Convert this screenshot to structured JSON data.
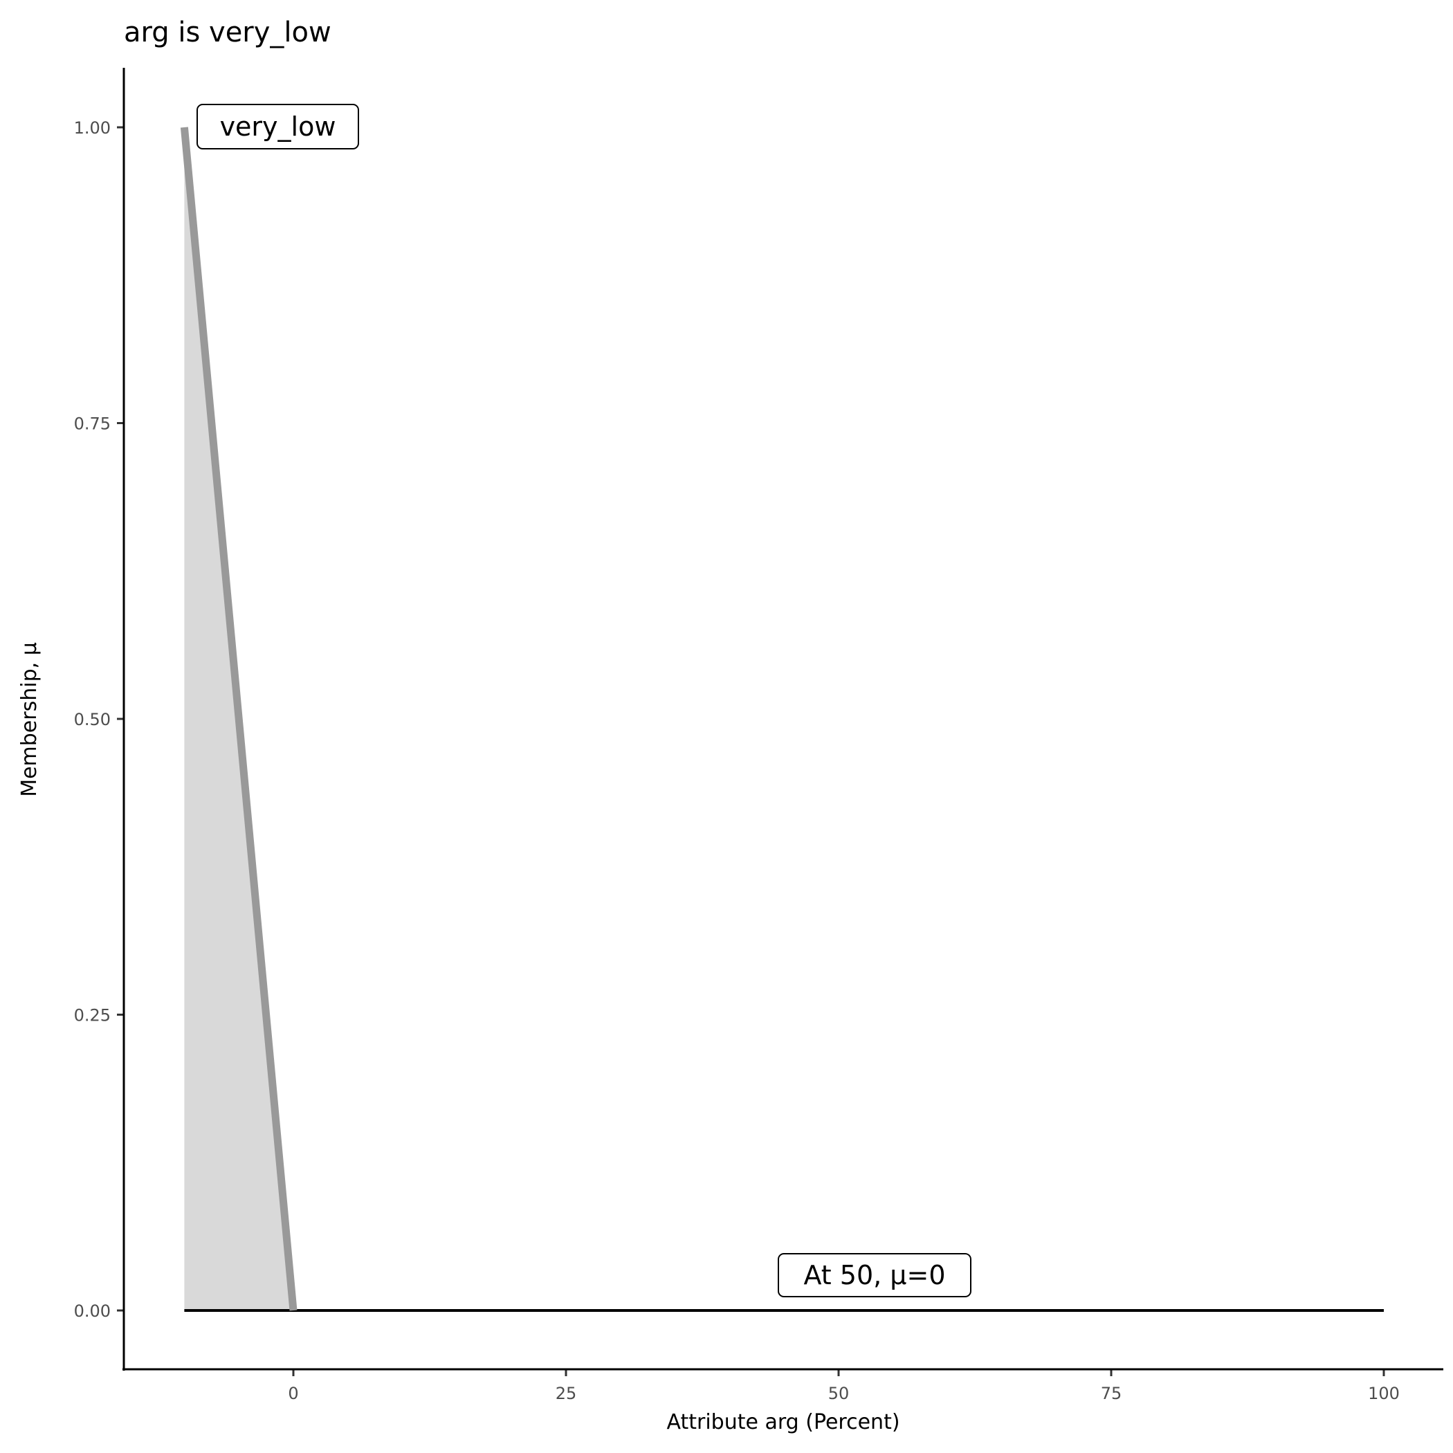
{
  "chart_data": {
    "type": "area",
    "title": "arg is very_low",
    "xlabel": "Attribute arg (Percent)",
    "ylabel": "Membership, μ",
    "xlim": [
      -15.5,
      105
    ],
    "ylim": [
      -0.05,
      1.05
    ],
    "x_ticks": [
      0,
      25,
      50,
      75,
      100
    ],
    "x_tick_labels": [
      "0",
      "25",
      "50",
      "75",
      "100"
    ],
    "y_ticks": [
      0,
      0.25,
      0.5,
      0.75,
      1
    ],
    "y_tick_labels": [
      "0.00",
      "0.25",
      "0.50",
      "0.75",
      "1.00"
    ],
    "grid": false,
    "series": [
      {
        "name": "very_low",
        "x": [
          -10,
          0
        ],
        "y": [
          1,
          0
        ],
        "color": "#999999",
        "fill": "#d9d9d9"
      },
      {
        "x": [
          -10,
          100
        ],
        "y": [
          0,
          0
        ],
        "color": "#000000"
      }
    ],
    "annotations": [
      {
        "text": "very_low",
        "x": -10,
        "y": 1
      },
      {
        "text": "At 50, μ=0",
        "x": 50,
        "y": 0
      }
    ]
  }
}
